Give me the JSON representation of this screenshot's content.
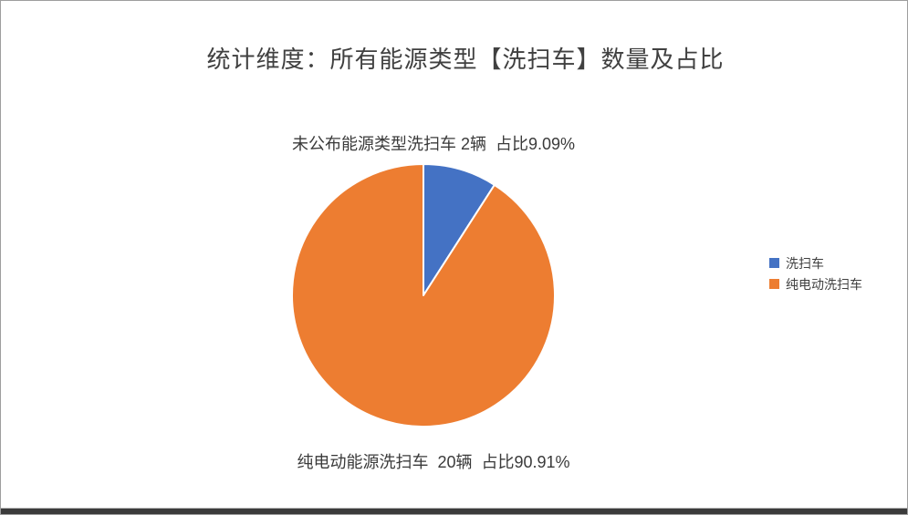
{
  "title": "统计维度：所有能源类型【洗扫车】数量及占比",
  "labels": {
    "top": "未公布能源类型洗扫车 2辆  占比9.09%",
    "bottom": "纯电动能源洗扫车  20辆  占比90.91%"
  },
  "legend": {
    "position": "right",
    "items": [
      {
        "label": "洗扫车",
        "color": "#4472C4"
      },
      {
        "label": "纯电动洗扫车",
        "color": "#ED7D31"
      }
    ]
  },
  "chart_data": {
    "type": "pie",
    "title": "统计维度：所有能源类型【洗扫车】数量及占比",
    "unit": "辆",
    "start_angle_deg": 0,
    "direction": "clockwise",
    "legend_position": "right",
    "slices": [
      {
        "legend_label": "洗扫车",
        "category": "未公布能源类型洗扫车",
        "value": 2,
        "percent": 9.09,
        "color": "#4472C4",
        "data_label": "未公布能源类型洗扫车 2辆  占比9.09%"
      },
      {
        "legend_label": "纯电动洗扫车",
        "category": "纯电动能源洗扫车",
        "value": 20,
        "percent": 90.91,
        "color": "#ED7D31",
        "data_label": "纯电动能源洗扫车  20辆  占比90.91%"
      }
    ],
    "slice_border_color": "#ffffff"
  },
  "window": {
    "background": "#ffffff",
    "border_color": "#9e9e9e",
    "bottom_bar_color": "#3b3b3b"
  }
}
